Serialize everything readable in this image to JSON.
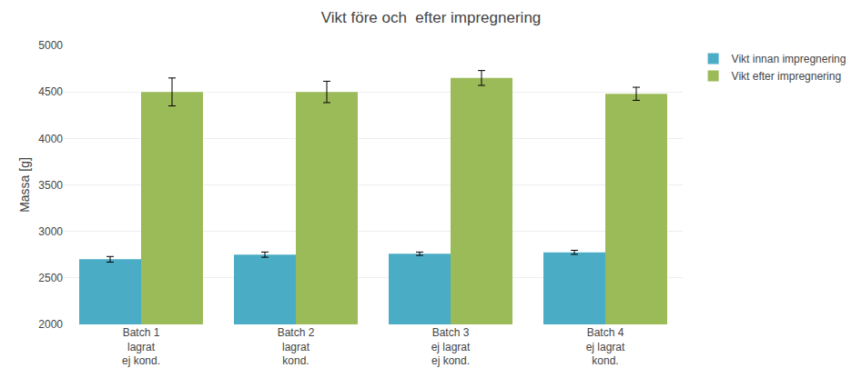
{
  "chart_data": {
    "type": "bar",
    "title": "Vikt före och  efter impregnering",
    "ylabel": "Massa [g]",
    "categories": [
      "Batch 1\nlagrat\nej kond.",
      "Batch 2\nlagrat\nkond.",
      "Batch 3\nej lagrat\nej kond.",
      "Batch 4\nej lagrat\nkond."
    ],
    "series": [
      {
        "name": "Vikt innan impregnering",
        "color": "#4BACC6",
        "values": [
          2700,
          2750,
          2760,
          2775
        ],
        "errors": [
          30,
          28,
          18,
          22
        ]
      },
      {
        "name": "Vikt efter impregnering",
        "color": "#9BBB59",
        "values": [
          4500,
          4500,
          4650,
          4480
        ],
        "errors": [
          150,
          115,
          80,
          70
        ]
      }
    ],
    "ylim": [
      2000,
      5000
    ],
    "yticks": [
      2000,
      2500,
      3000,
      3500,
      4000,
      4500,
      5000
    ],
    "grid": true,
    "legend": "right"
  }
}
